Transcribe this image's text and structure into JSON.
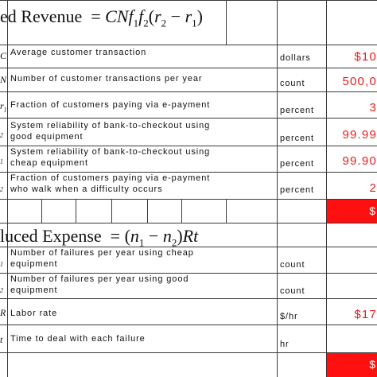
{
  "revenue_section": {
    "title_label": "ed  Revenue",
    "formula": {
      "lhs": "=",
      "c": "C",
      "n": "N",
      "f1": "f",
      "f1_sub": "1",
      "f2": "f",
      "f2_sub": "2",
      "open": "(",
      "r2": "r",
      "r2_sub": "2",
      "minus": "−",
      "r1": "r",
      "r1_sub": "1",
      "close": ")"
    },
    "rows": [
      {
        "symbol": "C",
        "sub": "",
        "description": "Average customer transaction",
        "unit": "dollars",
        "value": "$10"
      },
      {
        "symbol": "N",
        "sub": "",
        "description": "Number of customer transactions per year",
        "unit": "count",
        "value": "500,0"
      },
      {
        "symbol": "r",
        "sub": "1",
        "description": "Fraction of customers paying via e-payment",
        "unit": "percent",
        "value": "3"
      },
      {
        "symbol": "",
        "sub": "2",
        "description": "System reliability of bank-to-checkout using good equipment",
        "unit": "percent",
        "value": "99.99"
      },
      {
        "symbol": "",
        "sub": "1",
        "description": "System reliability of bank-to-checkout using cheap equipment",
        "unit": "percent",
        "value": "99.90"
      },
      {
        "symbol": "",
        "sub": "2",
        "description": "Fraction of customers paying via e-payment who walk when a difficulty occurs",
        "unit": "percent",
        "value": "2"
      }
    ],
    "total_value": "$"
  },
  "expense_section": {
    "title_label": "luced  Expense",
    "formula": {
      "eq": "=",
      "open": "(",
      "n1": "n",
      "n1_sub": "1",
      "minus": "−",
      "n2": "n",
      "n2_sub": "2",
      "close": ")",
      "rt": "Rt"
    },
    "rows": [
      {
        "symbol": "",
        "sub": "1",
        "description": "Number of failures per year using cheap equipment",
        "unit": "count",
        "value": ""
      },
      {
        "symbol": "",
        "sub": "2",
        "description": "Number of failures per year using good equipment",
        "unit": "count",
        "value": ""
      },
      {
        "symbol": "R",
        "sub": "",
        "description": "Labor rate",
        "unit": "$/hr",
        "value": "$17"
      },
      {
        "symbol": "t",
        "sub": "",
        "description": "Time to deal with each failure",
        "unit": "hr",
        "value": ""
      }
    ],
    "total_value": "$"
  },
  "colors": {
    "value_text": "#e81c1c",
    "total_fill": "#ff1010",
    "grid": "#3a3a3a"
  }
}
